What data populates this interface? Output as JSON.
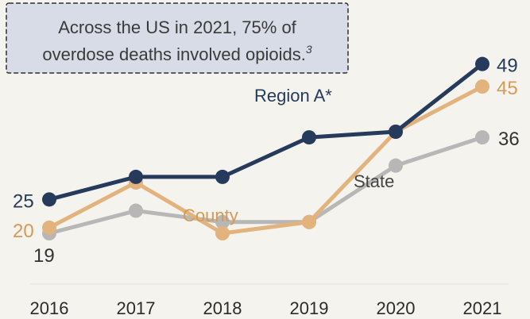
{
  "callout": {
    "line1": "Across the US in 2021, 75% of",
    "line2": "overdose deaths involved opioids.",
    "footnote": "3"
  },
  "chart_data": {
    "type": "line",
    "x": [
      "2016",
      "2017",
      "2018",
      "2019",
      "2020",
      "2021"
    ],
    "ylim": [
      10,
      55
    ],
    "grid": false,
    "legend": "inline labels",
    "series": [
      {
        "name": "Region A*",
        "color": "#263a5c",
        "values": [
          25,
          29,
          29,
          36,
          37,
          49
        ],
        "start_label": "25",
        "end_label": "49"
      },
      {
        "name": "County",
        "color": "#e3b37e",
        "values": [
          20,
          28,
          19,
          21,
          37,
          45
        ],
        "start_label": "20",
        "end_label": "45"
      },
      {
        "name": "State",
        "color": "#b7b7b7",
        "values": [
          19,
          23,
          21,
          21,
          31,
          36
        ],
        "start_label": "19",
        "end_label": "36"
      }
    ]
  }
}
